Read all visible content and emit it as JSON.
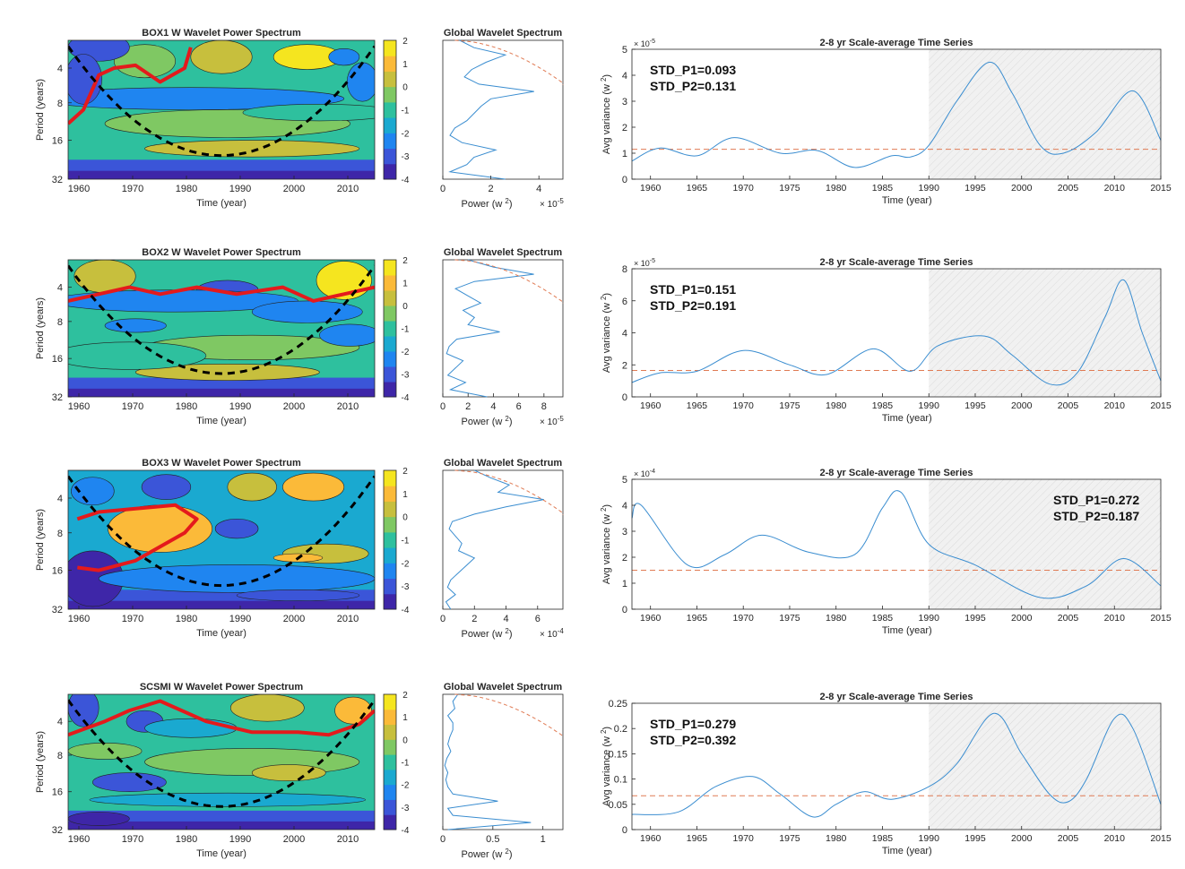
{
  "rows": [
    {
      "wavelet": {
        "title": "BOX1 W Wavelet Power Spectrum",
        "ylabel": "Period (years)",
        "xlabel": "Time (year)",
        "xticks": [
          "1960",
          "1970",
          "1980",
          "1990",
          "2000",
          "2010"
        ],
        "yticks": [
          "4",
          "8",
          "16",
          "32"
        ],
        "colorbar_ticks": [
          "2",
          "1",
          "0",
          "-1",
          "-2",
          "-3",
          "-4"
        ]
      },
      "global": {
        "title": "Global Wavelet Spectrum",
        "xlabel": "Power (w",
        "xlabel_sup": "2",
        "xlabel_close": ")",
        "xticks": [
          "0",
          "2",
          "4"
        ],
        "xmax": 5,
        "multiplier": "× 10",
        "multiplier_exp": "-5",
        "power": [
          2.6,
          0.3,
          1.0,
          1.3,
          2.2,
          0.8,
          0.3,
          0.5,
          1.0,
          1.3,
          1.6,
          2.0,
          3.8,
          1.5,
          0.9,
          1.2,
          1.8,
          2.6,
          1.3,
          0.7
        ]
      },
      "series": {
        "title": "2-8 yr Scale-average Time Series",
        "ylabel": "Avg variance (w",
        "ylabel_sup": "2",
        "ylabel_close": ")",
        "xlabel": "Time (year)",
        "ymax": 5,
        "yticks": [
          "0",
          "1",
          "2",
          "3",
          "4",
          "5"
        ],
        "exp": "-5",
        "significance": 1.15,
        "std_p1": "STD_P1=0.093",
        "std_p2": "STD_P2=0.131",
        "std_pos": "left",
        "years": [
          1958,
          1961,
          1965,
          1969,
          1974,
          1978,
          1982,
          1986,
          1988,
          1990,
          1993,
          1996.5,
          1999,
          2002,
          2004.5,
          2008,
          2012,
          2015
        ],
        "values": [
          0.7,
          1.2,
          0.9,
          1.6,
          1.0,
          1.1,
          0.45,
          0.9,
          0.85,
          1.3,
          3.0,
          4.5,
          3.3,
          1.3,
          1.0,
          1.8,
          3.4,
          1.5
        ]
      }
    },
    {
      "wavelet": {
        "title": "BOX2 W Wavelet Power Spectrum",
        "ylabel": "Period (years)",
        "xlabel": "Time (year)",
        "xticks": [
          "1960",
          "1970",
          "1980",
          "1990",
          "2000",
          "2010"
        ],
        "yticks": [
          "4",
          "8",
          "16",
          "32"
        ],
        "colorbar_ticks": [
          "2",
          "1",
          "0",
          "-1",
          "-2",
          "-3",
          "-4"
        ]
      },
      "global": {
        "title": "Global Wavelet Spectrum",
        "xlabel": "Power (w",
        "xlabel_sup": "2",
        "xlabel_close": ")",
        "xticks": [
          "0",
          "2",
          "4",
          "6",
          "8"
        ],
        "xmax": 9.5,
        "multiplier": "× 10",
        "multiplier_exp": "-5",
        "power": [
          3.5,
          0.6,
          1.8,
          0.4,
          1.0,
          1.6,
          0.3,
          0.5,
          1.1,
          4.5,
          2.0,
          2.5,
          1.6,
          3.0,
          2.0,
          1.0,
          2.5,
          7.2,
          4.0,
          2.0
        ]
      },
      "series": {
        "title": "2-8 yr Scale-average Time Series",
        "ylabel": "Avg variance (w",
        "ylabel_sup": "2",
        "ylabel_close": ")",
        "xlabel": "Time (year)",
        "ymax": 8,
        "yticks": [
          "0",
          "2",
          "4",
          "6",
          "8"
        ],
        "exp": "-5",
        "significance": 1.65,
        "std_p1": "STD_P1=0.151",
        "std_p2": "STD_P2=0.191",
        "std_pos": "left",
        "years": [
          1958,
          1961,
          1965,
          1970,
          1975,
          1979,
          1984,
          1988,
          1991,
          1996,
          1999,
          2003,
          2006,
          2009,
          2011,
          2013,
          2015
        ],
        "values": [
          0.9,
          1.5,
          1.6,
          2.9,
          2.0,
          1.4,
          3.0,
          1.6,
          3.2,
          3.8,
          2.6,
          0.8,
          1.5,
          5.0,
          7.3,
          4.0,
          1.0
        ]
      }
    },
    {
      "wavelet": {
        "title": "BOX3 W Wavelet Power Spectrum",
        "ylabel": "Period (years)",
        "xlabel": "Time (year)",
        "xticks": [
          "1960",
          "1970",
          "1980",
          "1990",
          "2000",
          "2010"
        ],
        "yticks": [
          "4",
          "8",
          "16",
          "32"
        ],
        "colorbar_ticks": [
          "2",
          "1",
          "0",
          "-1",
          "-2",
          "-3",
          "-4"
        ]
      },
      "global": {
        "title": "Global Wavelet Spectrum",
        "xlabel": "Power (w",
        "xlabel_sup": "2",
        "xlabel_close": ")",
        "xticks": [
          "0",
          "2",
          "4",
          "6"
        ],
        "xmax": 7.6,
        "multiplier": "× 10",
        "multiplier_exp": "-4",
        "power": [
          0.5,
          0.2,
          0.8,
          0.3,
          0.5,
          1.0,
          1.5,
          2.0,
          1.0,
          1.2,
          0.8,
          0.4,
          0.6,
          2.0,
          4.0,
          6.4,
          3.5,
          4.2,
          3.0,
          2.0
        ]
      },
      "series": {
        "title": "2-8 yr Scale-average Time Series",
        "ylabel": "Avg variance (w",
        "ylabel_sup": "2",
        "ylabel_close": ")",
        "xlabel": "Time (year)",
        "ymax": 5,
        "yticks": [
          "0",
          "1",
          "2",
          "3",
          "4",
          "5"
        ],
        "exp": "-4",
        "significance": 1.5,
        "std_p1": "STD_P1=0.272",
        "std_p2": "STD_P2=0.187",
        "std_pos": "right",
        "years": [
          1958,
          1959,
          1964,
          1968,
          1972,
          1977,
          1982,
          1985,
          1987,
          1990,
          1995,
          2002,
          2007,
          2011,
          2015
        ],
        "values": [
          3.5,
          4.0,
          1.7,
          2.1,
          2.85,
          2.2,
          2.1,
          3.9,
          4.5,
          2.5,
          1.7,
          0.45,
          0.9,
          1.95,
          0.9
        ]
      }
    },
    {
      "wavelet": {
        "title": "SCSMI W Wavelet Power Spectrum",
        "ylabel": "Period (years)",
        "xlabel": "Time (year)",
        "xticks": [
          "1960",
          "1970",
          "1980",
          "1990",
          "2000",
          "2010"
        ],
        "yticks": [
          "4",
          "8",
          "16",
          "32"
        ],
        "colorbar_ticks": [
          "2",
          "1",
          "0",
          "-1",
          "-2",
          "-3",
          "-4"
        ]
      },
      "global": {
        "title": "Global Wavelet Spectrum",
        "xlabel": "Power (w",
        "xlabel_sup": "2",
        "xlabel_close": ")",
        "xticks": [
          "0",
          "0.5",
          "1"
        ],
        "xmax": 1.2,
        "multiplier": "",
        "multiplier_exp": "",
        "power": [
          0.05,
          0.88,
          0.1,
          0.05,
          0.55,
          0.1,
          0.05,
          0.03,
          0.05,
          0.02,
          0.04,
          0.08,
          0.05,
          0.07,
          0.1,
          0.1,
          0.05,
          0.12,
          0.1,
          0.15
        ]
      },
      "series": {
        "title": "2-8 yr Scale-average Time Series",
        "ylabel": "Avg variance (w",
        "ylabel_sup": "2",
        "ylabel_close": ")",
        "xlabel": "Time (year)",
        "ymax": 0.25,
        "yticks": [
          "0",
          "0.05",
          "0.1",
          "0.15",
          "0.2",
          "0.25"
        ],
        "exp": "",
        "significance": 0.067,
        "std_p1": "STD_P1=0.279",
        "std_p2": "STD_P2=0.392",
        "std_pos": "left",
        "years": [
          1958,
          1963,
          1967,
          1971,
          1974,
          1977.5,
          1980,
          1983,
          1986,
          1990,
          1993,
          1997,
          2000,
          2003,
          2005,
          2007,
          2010,
          2012,
          2015
        ],
        "values": [
          0.03,
          0.035,
          0.085,
          0.105,
          0.07,
          0.025,
          0.05,
          0.075,
          0.06,
          0.085,
          0.13,
          0.23,
          0.15,
          0.07,
          0.055,
          0.1,
          0.22,
          0.2,
          0.05
        ]
      }
    }
  ],
  "chart_data": [
    {
      "type": "heatmap",
      "panel": "BOX1 W Wavelet Power Spectrum",
      "x_range": [
        1958,
        2015
      ],
      "y_range_years": [
        2,
        32
      ],
      "color_range_log2": [
        -4,
        2
      ]
    },
    {
      "type": "line",
      "panel": "Global Wavelet Spectrum (BOX1)"
    },
    {
      "type": "line",
      "panel": "2-8 yr Scale-average Time Series (BOX1)",
      "shaded_from": 1990
    },
    {
      "type": "heatmap",
      "panel": "BOX2 W Wavelet Power Spectrum",
      "x_range": [
        1958,
        2015
      ]
    },
    {
      "type": "line",
      "panel": "Global Wavelet Spectrum (BOX2)"
    },
    {
      "type": "line",
      "panel": "2-8 yr Scale-average Time Series (BOX2)",
      "shaded_from": 1990
    },
    {
      "type": "heatmap",
      "panel": "BOX3 W Wavelet Power Spectrum",
      "x_range": [
        1958,
        2015
      ]
    },
    {
      "type": "line",
      "panel": "Global Wavelet Spectrum (BOX3)"
    },
    {
      "type": "line",
      "panel": "2-8 yr Scale-average Time Series (BOX3)",
      "shaded_from": 1990
    },
    {
      "type": "heatmap",
      "panel": "SCSMI W Wavelet Power Spectrum",
      "x_range": [
        1958,
        2015
      ]
    },
    {
      "type": "line",
      "panel": "Global Wavelet Spectrum (SCSMI)"
    },
    {
      "type": "line",
      "panel": "2-8 yr Scale-average Time Series (SCSMI)",
      "shaded_from": 1990
    }
  ],
  "colors": {
    "series_line": "#3a8dd0",
    "significance": "#e07b54",
    "coi": "#000000",
    "sig_contour": "#e41a1c",
    "colormap": [
      "#3e26a8",
      "#3b55d8",
      "#1f85f0",
      "#1aa9d0",
      "#2ec09e",
      "#7fc863",
      "#c7bf3d",
      "#fbba39",
      "#f5e51f"
    ]
  }
}
